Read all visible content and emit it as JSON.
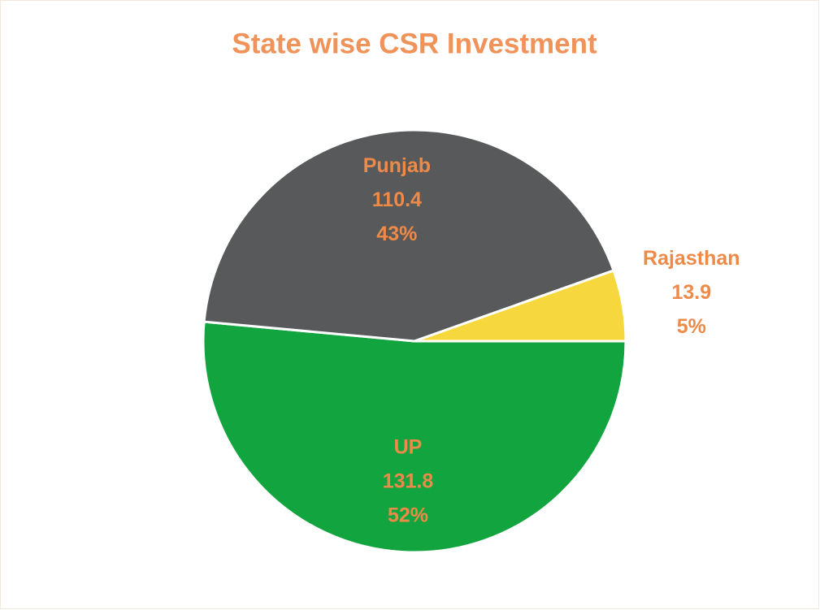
{
  "chart_data": {
    "type": "pie",
    "title": "State wise CSR Investment",
    "categories": [
      "UP",
      "Punjab",
      "Rajasthan"
    ],
    "values": [
      131.8,
      110.4,
      13.9
    ],
    "percent_labels": [
      "52%",
      "43%",
      "5%"
    ],
    "colors": [
      "#12a43f",
      "#58595b",
      "#f6d83e"
    ]
  }
}
